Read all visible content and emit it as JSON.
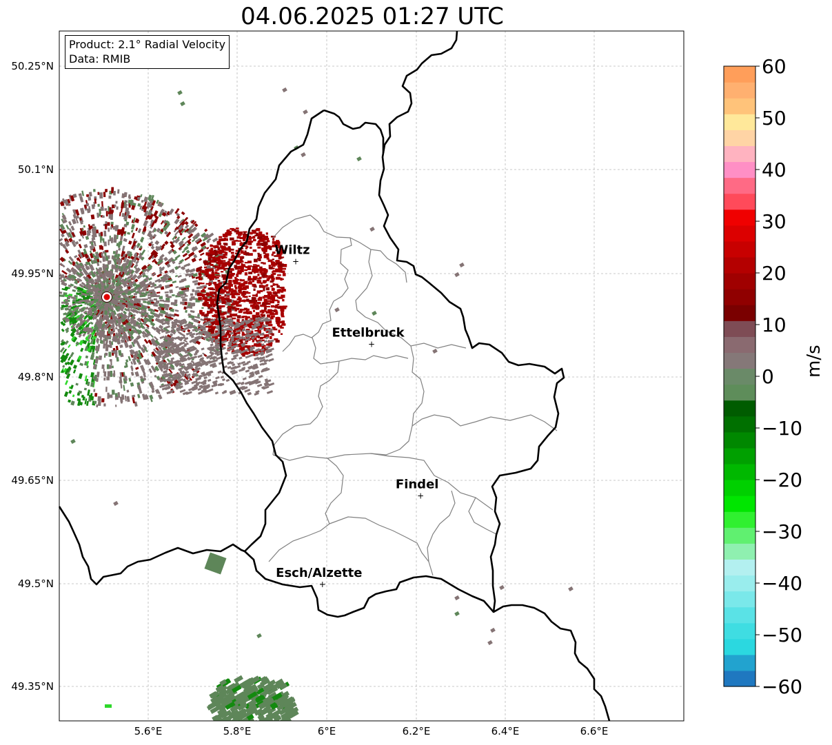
{
  "title": "04.06.2025 01:27 UTC",
  "info": {
    "product": "Product: 2.1° Radial Velocity",
    "source": "Data: RMIB"
  },
  "lat_labels": [
    "50.25°N",
    "50.1°N",
    "49.95°N",
    "49.8°N",
    "49.65°N",
    "49.5°N",
    "49.35°N"
  ],
  "lon_labels": [
    "5.6°E",
    "5.8°E",
    "6°E",
    "6.2°E",
    "6.4°E",
    "6.6°E"
  ],
  "map_extent": {
    "lon": [
      5.4,
      6.8
    ],
    "lat": [
      49.3,
      50.3
    ]
  },
  "cities": [
    {
      "name": "Wiltz",
      "lon": 5.93,
      "lat": 49.967
    },
    {
      "name": "Ettelbruck",
      "lon": 6.1,
      "lat": 49.847
    },
    {
      "name": "Findel",
      "lon": 6.21,
      "lat": 49.627
    },
    {
      "name": "Esch/Alzette",
      "lon": 5.99,
      "lat": 49.499
    }
  ],
  "radar_site": {
    "lon": 5.505,
    "lat": 49.914,
    "color": "#e00000"
  },
  "colorbar": {
    "unit": "m/s",
    "min": -60,
    "max": 60,
    "tick_labels": [
      "60",
      "50",
      "40",
      "30",
      "20",
      "10",
      "0",
      "−10",
      "−20",
      "−30",
      "−40",
      "−50",
      "−60"
    ],
    "tick_values": [
      60,
      50,
      40,
      30,
      20,
      10,
      0,
      -10,
      -20,
      -30,
      -40,
      -50,
      -60
    ],
    "colors": [
      "#1f78c0",
      "#22a3cf",
      "#2bd8e0",
      "#3fdde2",
      "#5ae2e6",
      "#7ae8ea",
      "#99eded",
      "#b3f0f0",
      "#8ff0b0",
      "#60f070",
      "#30f030",
      "#00e600",
      "#00d000",
      "#00b800",
      "#00a000",
      "#008800",
      "#007000",
      "#005c00",
      "#5e8d5a",
      "#6a8a68",
      "#857878",
      "#8a6a70",
      "#7e4c55",
      "#7a0000",
      "#900000",
      "#a00000",
      "#b40000",
      "#c80000",
      "#dc0000",
      "#f00000",
      "#ff4a5a",
      "#ff6a85",
      "#ff8fc5",
      "#ffb3c0",
      "#ffd4a5",
      "#ffe89a",
      "#ffc37a",
      "#ffb070",
      "#ff9e5a"
    ]
  },
  "velocity_colors": {
    "receding_dark": "#8b0000",
    "receding_red": "#a80000",
    "near_zero_gray": "#857475",
    "near_zero_green": "#5e8659",
    "approaching_green": "#138a0f",
    "approaching_bright": "#2ed82a"
  }
}
